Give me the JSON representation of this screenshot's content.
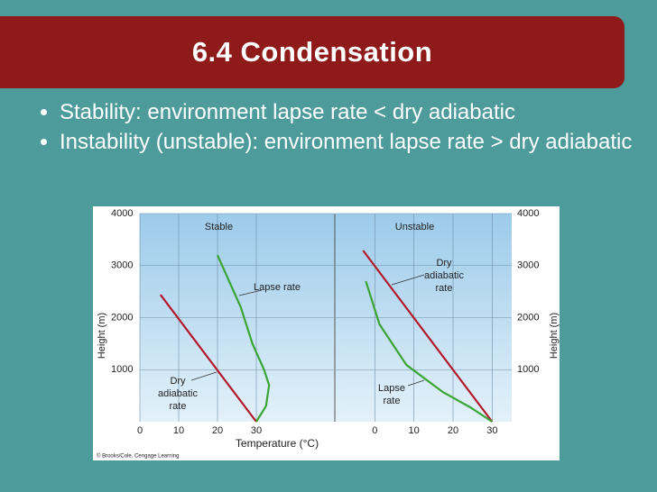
{
  "slide": {
    "title": "6.4 Condensation",
    "bullets": [
      "Stability: environment lapse rate < dry adiabatic",
      "Instability (unstable): environment lapse rate > dry adiabatic"
    ]
  },
  "figure": {
    "xlabel": "Temperature (°C)",
    "credit": "© Brooks/Cole, Cengage Learning"
  },
  "chart_data": [
    {
      "type": "line",
      "title": "Stable",
      "ylabel": "Height (m)",
      "xlim": [
        0,
        50
      ],
      "xticks": [
        0,
        10,
        20,
        30
      ],
      "ylim": [
        0,
        4000
      ],
      "yticks": [
        1000,
        2000,
        3000,
        4000
      ],
      "grid": true,
      "series": [
        {
          "name": "Dry adiabatic rate",
          "color": "#b3182b",
          "x": [
            30,
            5.3
          ],
          "values": [
            0,
            2440
          ]
        },
        {
          "name": "Lapse rate",
          "color": "#3aa535",
          "x": [
            30,
            32.5,
            33.3,
            32,
            29,
            26,
            23,
            20
          ],
          "values": [
            0,
            300,
            700,
            1000,
            1500,
            2200,
            2700,
            3200
          ]
        }
      ]
    },
    {
      "type": "line",
      "title": "Unstable",
      "ylabel": "Height (m)",
      "xlim": [
        -10,
        35
      ],
      "xticks": [
        0,
        10,
        20,
        30
      ],
      "ylim": [
        0,
        4000
      ],
      "yticks": [
        1000,
        2000,
        3000,
        4000
      ],
      "grid": true,
      "series": [
        {
          "name": "Dry adiabatic rate",
          "color": "#b3182b",
          "x": [
            30,
            -3
          ],
          "values": [
            0,
            3290
          ]
        },
        {
          "name": "Lapse rate",
          "color": "#3aa535",
          "x": [
            30,
            24.4,
            17.4,
            8.1,
            1.2,
            -2.3
          ],
          "values": [
            0,
            277,
            570,
            1090,
            1870,
            2700
          ]
        }
      ]
    }
  ]
}
